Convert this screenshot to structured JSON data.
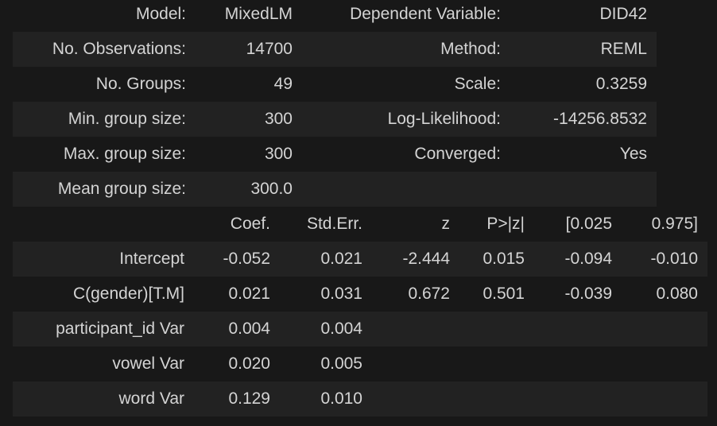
{
  "model_info": {
    "rows": [
      [
        "Model:",
        "MixedLM",
        "Dependent Variable:",
        "DID42"
      ],
      [
        "No. Observations:",
        "14700",
        "Method:",
        "REML"
      ],
      [
        "No. Groups:",
        "49",
        "Scale:",
        "0.3259"
      ],
      [
        "Min. group size:",
        "300",
        "Log-Likelihood:",
        "-14256.8532"
      ],
      [
        "Max. group size:",
        "300",
        "Converged:",
        "Yes"
      ],
      [
        "Mean group size:",
        "300.0",
        "",
        ""
      ]
    ]
  },
  "coefficients": {
    "headers": [
      "",
      "Coef.",
      "Std.Err.",
      "z",
      "P>|z|",
      "[0.025",
      "0.975]"
    ],
    "rows": [
      [
        "Intercept",
        "-0.052",
        "0.021",
        "-2.444",
        "0.015",
        "-0.094",
        "-0.010"
      ],
      [
        "C(gender)[T.M]",
        "0.021",
        "0.031",
        "0.672",
        "0.501",
        "-0.039",
        "0.080"
      ],
      [
        "participant_id Var",
        "0.004",
        "0.004",
        "",
        "",
        "",
        ""
      ],
      [
        "vowel Var",
        "0.020",
        "0.005",
        "",
        "",
        "",
        ""
      ],
      [
        "word Var",
        "0.129",
        "0.010",
        "",
        "",
        "",
        ""
      ]
    ]
  }
}
